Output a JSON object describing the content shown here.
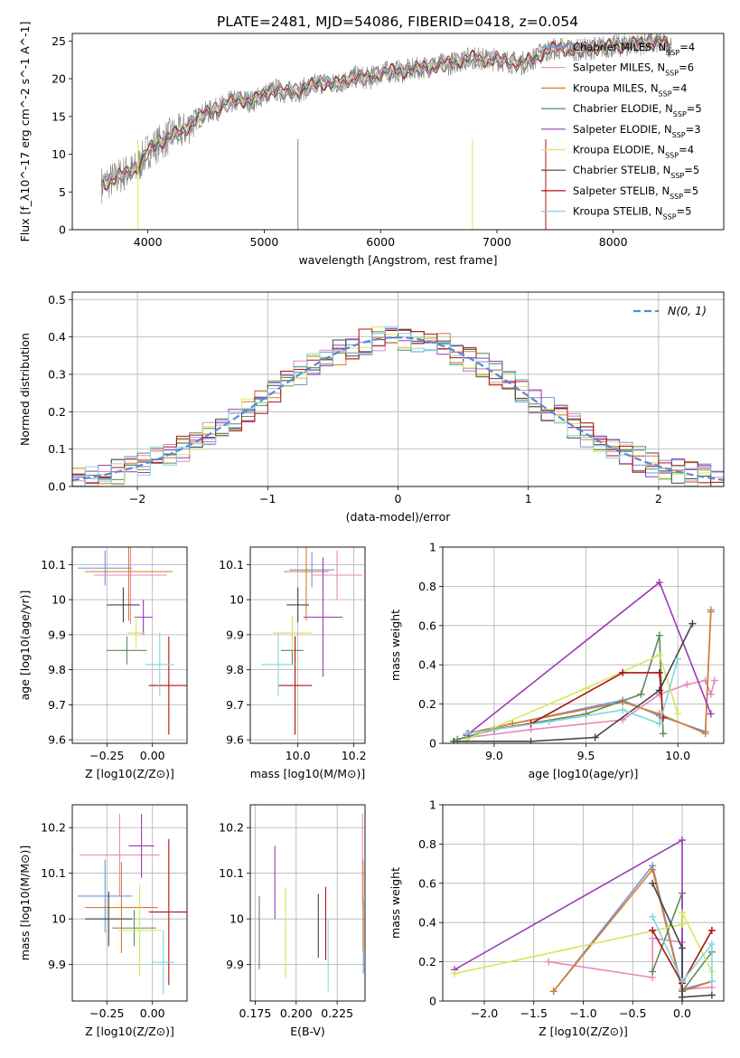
{
  "figure_title": "PLATE=2481, MJD=54086, FIBERID=0418, z=0.054",
  "colors": {
    "Chabrier MILES": "#6f96d8",
    "Salpeter MILES": "#e887bb",
    "Kroupa MILES": "#d77c2c",
    "Chabrier ELODIE": "#5c8a5c",
    "Salpeter ELODIE": "#9a3bb8",
    "Kroupa ELODIE": "#d4e85a",
    "Chabrier STELIB": "#444444",
    "Salpeter STELIB": "#b01010",
    "Kroupa STELIB": "#82d6e0",
    "data": "#808080",
    "normal": "#5b87d6"
  },
  "chart_data": [
    {
      "id": "spectrum",
      "type": "line",
      "xlabel": "wavelength [Angstrom, rest frame]",
      "ylabel": "Flux [f_λ10^-17 erg cm^-2 s^-1 A^-1]",
      "xlim": [
        3350,
        8950
      ],
      "ylim": [
        0,
        26
      ],
      "xticks": [
        4000,
        5000,
        6000,
        7000,
        8000
      ],
      "yticks": [
        0,
        5,
        10,
        15,
        20,
        25
      ],
      "legend": [
        {
          "name": "Chabrier MILES",
          "nssp": "4"
        },
        {
          "name": "Salpeter MILES",
          "nssp": "6"
        },
        {
          "name": "Kroupa MILES",
          "nssp": "4"
        },
        {
          "name": "Chabrier ELODIE",
          "nssp": "5"
        },
        {
          "name": "Salpeter ELODIE",
          "nssp": "3"
        },
        {
          "name": "Kroupa ELODIE",
          "nssp": "4"
        },
        {
          "name": "Chabrier STELIB",
          "nssp": "5"
        },
        {
          "name": "Salpeter STELIB",
          "nssp": "5"
        },
        {
          "name": "Kroupa STELIB",
          "nssp": "5"
        }
      ],
      "data_series": {
        "x": [
          3600,
          3700,
          3800,
          3900,
          4000,
          4100,
          4200,
          4300,
          4400,
          4500,
          4600,
          4700,
          4800,
          4900,
          5000,
          5100,
          5200,
          5300,
          5400,
          5500,
          5600,
          5700,
          5800,
          5900,
          6000,
          6100,
          6200,
          6300,
          6400,
          6500,
          6600,
          6700,
          6800,
          6900,
          7000,
          7100,
          7200,
          7300,
          7400,
          7500,
          7600,
          7700,
          7800,
          7900,
          8000,
          8100,
          8200,
          8300,
          8400,
          8500
        ],
        "y": [
          6.0,
          6.6,
          7.5,
          8.0,
          10.5,
          11.5,
          12.5,
          13.0,
          14.5,
          15.5,
          16.0,
          16.8,
          17.2,
          17.0,
          18.0,
          18.5,
          18.2,
          18.4,
          19.0,
          19.5,
          19.2,
          19.8,
          20.3,
          20.0,
          20.8,
          21.0,
          21.0,
          21.3,
          21.6,
          21.8,
          22.0,
          22.5,
          22.8,
          22.5,
          22.6,
          22.3,
          22.0,
          22.5,
          23.5,
          24.0,
          24.0,
          23.8,
          24.0,
          24.2,
          24.3,
          24.4,
          24.6,
          24.8,
          24.8,
          24.3
        ]
      }
    },
    {
      "id": "residuals",
      "type": "bar",
      "xlabel": "(data-model)/error",
      "ylabel": "Normed distribution",
      "xlim": [
        -2.5,
        2.5
      ],
      "ylim": [
        0,
        0.52
      ],
      "xticks": [
        -2,
        -1,
        0,
        1,
        2
      ],
      "yticks": [
        0.0,
        0.1,
        0.2,
        0.3,
        0.4,
        0.5
      ],
      "curve_label": "N(0, 1)",
      "bin_width": 0.1
    },
    {
      "id": "age-vs-Z",
      "type": "scatter",
      "xlabel": "Z [log10(Z/Z⊙)]",
      "ylabel": "age [log10(age/yr)]",
      "xlim": [
        -0.44,
        0.19
      ],
      "ylim": [
        9.59,
        10.15
      ],
      "xticks": [
        -0.25,
        0.0
      ],
      "xtick_labels": [
        "−0.25",
        "0.00"
      ],
      "yticks": [
        9.6,
        9.7,
        9.8,
        9.9,
        10.0,
        10.1
      ],
      "points": [
        {
          "series": "Chabrier MILES",
          "x": -0.26,
          "y": 10.09,
          "xerr": 0.15,
          "yerr": 0.05
        },
        {
          "series": "Salpeter MILES",
          "x": -0.12,
          "y": 10.07,
          "xerr": 0.2,
          "yerr": 0.14
        },
        {
          "series": "Kroupa MILES",
          "x": -0.13,
          "y": 10.08,
          "xerr": 0.24,
          "yerr": 0.14
        },
        {
          "series": "Chabrier ELODIE",
          "x": -0.14,
          "y": 9.855,
          "xerr": 0.11,
          "yerr": 0.04
        },
        {
          "series": "Salpeter ELODIE",
          "x": -0.05,
          "y": 9.95,
          "xerr": 0.05,
          "yerr": 0.05
        },
        {
          "series": "Kroupa ELODIE",
          "x": -0.09,
          "y": 9.905,
          "xerr": 0.05,
          "yerr": 0.05
        },
        {
          "series": "Chabrier STELIB",
          "x": -0.16,
          "y": 9.985,
          "xerr": 0.09,
          "yerr": 0.05
        },
        {
          "series": "Salpeter STELIB",
          "x": 0.09,
          "y": 9.755,
          "xerr": 0.11,
          "yerr": 0.14
        },
        {
          "series": "Kroupa STELIB",
          "x": 0.04,
          "y": 9.815,
          "xerr": 0.08,
          "yerr": 0.09
        }
      ]
    },
    {
      "id": "age-vs-mass",
      "type": "scatter",
      "xlabel": "mass [log10(M/M⊙)]",
      "ylabel": "",
      "xlim": [
        9.83,
        10.24
      ],
      "ylim": [
        9.59,
        10.15
      ],
      "xticks": [
        10.0,
        10.2
      ],
      "xtick_labels": [
        "10.0",
        "10.2"
      ],
      "yticks": [
        9.6,
        9.7,
        9.8,
        9.9,
        10.0,
        10.1
      ],
      "points": [
        {
          "series": "Chabrier MILES",
          "x": 10.05,
          "y": 10.085,
          "xerr": 0.08,
          "yerr": 0.05
        },
        {
          "series": "Salpeter MILES",
          "x": 10.14,
          "y": 10.07,
          "xerr": 0.09,
          "yerr": 0.07
        },
        {
          "series": "Kroupa MILES",
          "x": 10.03,
          "y": 10.08,
          "xerr": 0.08,
          "yerr": 0.14
        },
        {
          "series": "Chabrier ELODIE",
          "x": 9.98,
          "y": 9.855,
          "xerr": 0.04,
          "yerr": 0.04
        },
        {
          "series": "Salpeter ELODIE",
          "x": 10.09,
          "y": 9.95,
          "xerr": 0.07,
          "yerr": 0.17
        },
        {
          "series": "Kroupa ELODIE",
          "x": 9.98,
          "y": 9.905,
          "xerr": 0.07,
          "yerr": 0.05
        },
        {
          "series": "Chabrier STELIB",
          "x": 10.0,
          "y": 9.985,
          "xerr": 0.04,
          "yerr": 0.05
        },
        {
          "series": "Salpeter STELIB",
          "x": 9.99,
          "y": 9.755,
          "xerr": 0.06,
          "yerr": 0.14
        },
        {
          "series": "Kroupa STELIB",
          "x": 9.93,
          "y": 9.815,
          "xerr": 0.06,
          "yerr": 0.09
        }
      ]
    },
    {
      "id": "weight-vs-age",
      "type": "line",
      "xlabel": "age [log10(age/yr)]",
      "ylabel": "mass weight",
      "xlim": [
        8.72,
        10.25
      ],
      "ylim": [
        0,
        1.0
      ],
      "xticks": [
        9.0,
        9.5,
        10.0
      ],
      "xtick_labels": [
        "9.0",
        "9.5",
        "10.0"
      ],
      "yticks": [
        0.0,
        0.2,
        0.4,
        0.6,
        0.8,
        1.0
      ],
      "series": [
        {
          "name": "Chabrier MILES",
          "x": [
            8.86,
            9.1,
            9.7,
            9.9,
            10.15,
            10.18
          ],
          "y": [
            0.05,
            0.1,
            0.22,
            0.14,
            0.06,
            0.68
          ]
        },
        {
          "name": "Salpeter MILES",
          "x": [
            8.86,
            9.2,
            9.7,
            9.9,
            10.05,
            10.15,
            10.18,
            10.2
          ],
          "y": [
            0.03,
            0.07,
            0.12,
            0.25,
            0.3,
            0.32,
            0.25,
            0.32
          ]
        },
        {
          "name": "Kroupa MILES",
          "x": [
            8.85,
            9.1,
            9.7,
            9.9,
            10.15,
            10.18
          ],
          "y": [
            0.05,
            0.1,
            0.21,
            0.15,
            0.05,
            0.67
          ]
        },
        {
          "name": "Chabrier ELODIE",
          "x": [
            8.8,
            9.0,
            9.5,
            9.8,
            9.9,
            9.92
          ],
          "y": [
            0.02,
            0.07,
            0.15,
            0.25,
            0.55,
            0.05
          ]
        },
        {
          "name": "Salpeter ELODIE",
          "x": [
            8.85,
            9.9,
            10.18
          ],
          "y": [
            0.04,
            0.82,
            0.15
          ]
        },
        {
          "name": "Kroupa ELODIE",
          "x": [
            8.85,
            9.5,
            9.9,
            10.0
          ],
          "y": [
            0.02,
            0.28,
            0.45,
            0.15
          ]
        },
        {
          "name": "Chabrier STELIB",
          "x": [
            8.78,
            9.2,
            9.55,
            9.9,
            10.08
          ],
          "y": [
            0.01,
            0.01,
            0.03,
            0.27,
            0.61
          ]
        },
        {
          "name": "Salpeter STELIB",
          "x": [
            8.85,
            9.2,
            9.7,
            9.9,
            9.92
          ],
          "y": [
            0.05,
            0.1,
            0.36,
            0.36,
            0.13
          ]
        },
        {
          "name": "Kroupa STELIB",
          "x": [
            8.85,
            9.3,
            9.7,
            9.9,
            10.0
          ],
          "y": [
            0.05,
            0.11,
            0.17,
            0.1,
            0.43
          ]
        }
      ]
    },
    {
      "id": "mass-vs-Z",
      "type": "scatter",
      "xlabel": "Z [log10(Z/Z⊙)]",
      "ylabel": "mass [log10(M/M⊙)]",
      "xlim": [
        -0.44,
        0.19
      ],
      "ylim": [
        9.82,
        10.25
      ],
      "xticks": [
        -0.25,
        0.0
      ],
      "xtick_labels": [
        "−0.25",
        "0.00"
      ],
      "yticks": [
        9.9,
        10.0,
        10.1,
        10.2
      ],
      "points": [
        {
          "series": "Chabrier MILES",
          "x": -0.26,
          "y": 10.05,
          "xerr": 0.15,
          "yerr": 0.08
        },
        {
          "series": "Salpeter MILES",
          "x": -0.18,
          "y": 10.14,
          "xerr": 0.22,
          "yerr": 0.09
        },
        {
          "series": "Kroupa MILES",
          "x": -0.17,
          "y": 10.025,
          "xerr": 0.2,
          "yerr": 0.1
        },
        {
          "series": "Chabrier ELODIE",
          "x": -0.1,
          "y": 9.98,
          "xerr": 0.12,
          "yerr": 0.04
        },
        {
          "series": "Salpeter ELODIE",
          "x": -0.06,
          "y": 10.16,
          "xerr": 0.07,
          "yerr": 0.07
        },
        {
          "series": "Kroupa ELODIE",
          "x": -0.07,
          "y": 9.975,
          "xerr": 0.12,
          "yerr": 0.1
        },
        {
          "series": "Chabrier STELIB",
          "x": -0.24,
          "y": 10.0,
          "xerr": 0.13,
          "yerr": 0.06
        },
        {
          "series": "Salpeter STELIB",
          "x": 0.09,
          "y": 10.015,
          "xerr": 0.11,
          "yerr": 0.16
        },
        {
          "series": "Kroupa STELIB",
          "x": 0.06,
          "y": 9.905,
          "xerr": 0.06,
          "yerr": 0.07
        }
      ]
    },
    {
      "id": "mass-vs-EBV",
      "type": "scatter",
      "xlabel": "E(B-V)",
      "ylabel": "",
      "xlim": [
        0.172,
        0.242
      ],
      "ylim": [
        9.82,
        10.25
      ],
      "xticks": [
        0.175,
        0.2,
        0.225
      ],
      "xtick_labels": [
        "0.175",
        "0.200",
        "0.225"
      ],
      "yticks": [
        9.9,
        10.0,
        10.1,
        10.2
      ],
      "points": [
        {
          "series": "Chabrier MILES",
          "x": 0.241,
          "y": 9.96,
          "xerr": 0,
          "yerr": 0.08
        },
        {
          "series": "Salpeter MILES",
          "x": 0.2405,
          "y": 10.13,
          "xerr": 0,
          "yerr": 0.1
        },
        {
          "series": "Kroupa MILES",
          "x": 0.2408,
          "y": 10.03,
          "xerr": 0,
          "yerr": 0.1
        },
        {
          "series": "Chabrier ELODIE",
          "x": 0.1775,
          "y": 9.97,
          "xerr": 0,
          "yerr": 0.08
        },
        {
          "series": "Salpeter ELODIE",
          "x": 0.187,
          "y": 10.08,
          "xerr": 0,
          "yerr": 0.08
        },
        {
          "series": "Kroupa ELODIE",
          "x": 0.1935,
          "y": 9.97,
          "xerr": 0,
          "yerr": 0.1
        },
        {
          "series": "Chabrier STELIB",
          "x": 0.2135,
          "y": 9.985,
          "xerr": 0,
          "yerr": 0.07
        },
        {
          "series": "Salpeter STELIB",
          "x": 0.218,
          "y": 9.99,
          "xerr": 0,
          "yerr": 0.08
        },
        {
          "series": "Kroupa STELIB",
          "x": 0.2195,
          "y": 9.92,
          "xerr": 0,
          "yerr": 0.08
        }
      ]
    },
    {
      "id": "weight-vs-Z",
      "type": "line",
      "xlabel": "Z [log10(Z/Z⊙)]",
      "ylabel": "mass weight",
      "xlim": [
        -2.42,
        0.42
      ],
      "ylim": [
        0,
        1.0
      ],
      "xticks": [
        -2.0,
        -1.5,
        -1.0,
        -0.5,
        0.0
      ],
      "xtick_labels": [
        "−2.0",
        "−1.5",
        "−1.0",
        "−0.5",
        "0.0"
      ],
      "yticks": [
        0.0,
        0.2,
        0.4,
        0.6,
        0.8,
        1.0
      ],
      "series": [
        {
          "name": "Chabrier MILES",
          "x": [
            -1.3,
            -0.3,
            0.0,
            0.3
          ],
          "y": [
            0.05,
            0.69,
            0.06,
            0.1
          ]
        },
        {
          "name": "Salpeter MILES",
          "x": [
            -1.35,
            -0.3,
            -0.3,
            0.0,
            0.0,
            0.3
          ],
          "y": [
            0.2,
            0.12,
            0.32,
            0.3,
            0.06,
            0.07
          ]
        },
        {
          "name": "Kroupa MILES",
          "x": [
            -1.3,
            -0.3,
            0.0,
            0.3
          ],
          "y": [
            0.05,
            0.67,
            0.05,
            0.1
          ]
        },
        {
          "name": "Chabrier ELODIE",
          "x": [
            -0.3,
            0.0,
            0.0,
            0.3
          ],
          "y": [
            0.15,
            0.55,
            0.05,
            0.25
          ]
        },
        {
          "name": "Salpeter ELODIE",
          "x": [
            -2.3,
            0.0,
            0.0
          ],
          "y": [
            0.16,
            0.82,
            0.02
          ]
        },
        {
          "name": "Kroupa ELODIE",
          "x": [
            -2.3,
            0.0,
            0.0,
            0.3
          ],
          "y": [
            0.14,
            0.39,
            0.45,
            0.15
          ]
        },
        {
          "name": "Chabrier STELIB",
          "x": [
            -0.3,
            0.0,
            0.0,
            0.3
          ],
          "y": [
            0.6,
            0.27,
            0.02,
            0.03
          ]
        },
        {
          "name": "Salpeter STELIB",
          "x": [
            -0.3,
            0.0,
            0.3
          ],
          "y": [
            0.36,
            0.09,
            0.36
          ]
        },
        {
          "name": "Kroupa STELIB",
          "x": [
            -0.3,
            0.0,
            0.3,
            0.3
          ],
          "y": [
            0.43,
            0.1,
            0.29,
            0.1
          ]
        }
      ]
    }
  ]
}
